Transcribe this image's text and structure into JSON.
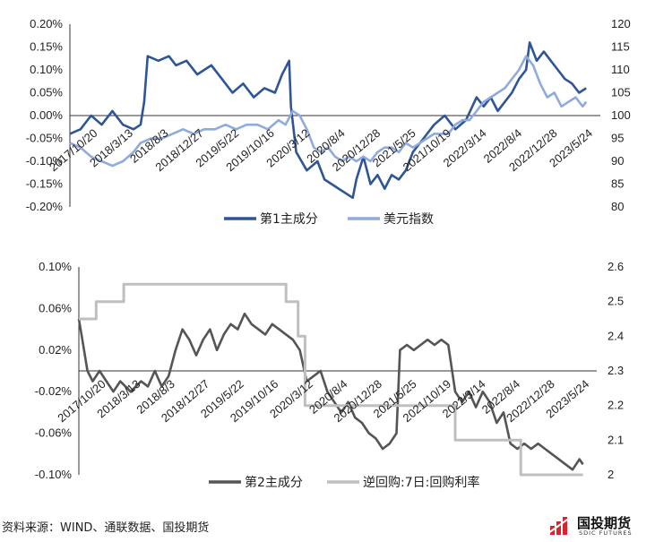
{
  "footer": {
    "source": "资料来源：WIND、通联数据、国投期货"
  },
  "logo": {
    "name": "国投期货",
    "sub": "SDIC FUTURES"
  },
  "chart_data": [
    {
      "type": "line",
      "x_ticks": [
        "2017/10/20",
        "2018/3/13",
        "2018/8/3",
        "2018/12/27",
        "2019/5/22",
        "2019/10/16",
        "2020/3/12",
        "2020/8/4",
        "2020/12/28",
        "2021/5/25",
        "2021/10/19",
        "2022/3/14",
        "2022/8/4",
        "2022/12/28",
        "2023/5/24"
      ],
      "y_left": {
        "min": -0.2,
        "max": 0.2,
        "ticks": [
          "-0.20%",
          "-0.15%",
          "-0.10%",
          "-0.05%",
          "0.00%",
          "0.05%",
          "0.10%",
          "0.15%",
          "0.20%"
        ]
      },
      "y_right": {
        "min": 80,
        "max": 120,
        "ticks": [
          "80",
          "85",
          "90",
          "95",
          "100",
          "105",
          "110",
          "115",
          "120"
        ]
      },
      "grid": false,
      "legend_position": "bottom",
      "series": [
        {
          "name": "第1主成分",
          "axis": "left",
          "color": "#2f5597",
          "points": [
            [
              0,
              -0.04
            ],
            [
              0.3,
              -0.03
            ],
            [
              0.6,
              0.0
            ],
            [
              0.9,
              -0.02
            ],
            [
              1.2,
              0.01
            ],
            [
              1.5,
              -0.02
            ],
            [
              1.8,
              -0.03
            ],
            [
              2.0,
              -0.02
            ],
            [
              2.1,
              0.03
            ],
            [
              2.2,
              0.13
            ],
            [
              2.5,
              0.12
            ],
            [
              2.8,
              0.13
            ],
            [
              3.0,
              0.11
            ],
            [
              3.3,
              0.12
            ],
            [
              3.6,
              0.09
            ],
            [
              3.8,
              0.1
            ],
            [
              4.0,
              0.11
            ],
            [
              4.3,
              0.08
            ],
            [
              4.6,
              0.05
            ],
            [
              4.9,
              0.07
            ],
            [
              5.2,
              0.04
            ],
            [
              5.5,
              0.06
            ],
            [
              5.8,
              0.05
            ],
            [
              6.0,
              0.09
            ],
            [
              6.2,
              0.12
            ],
            [
              6.25,
              0.02
            ],
            [
              6.4,
              -0.08
            ],
            [
              6.7,
              -0.12
            ],
            [
              7.0,
              -0.1
            ],
            [
              7.2,
              -0.14
            ],
            [
              7.4,
              -0.15
            ],
            [
              7.6,
              -0.16
            ],
            [
              7.8,
              -0.17
            ],
            [
              8.0,
              -0.18
            ],
            [
              8.1,
              -0.14
            ],
            [
              8.3,
              -0.09
            ],
            [
              8.5,
              -0.15
            ],
            [
              8.7,
              -0.13
            ],
            [
              8.9,
              -0.16
            ],
            [
              9.1,
              -0.13
            ],
            [
              9.3,
              -0.14
            ],
            [
              9.5,
              -0.12
            ],
            [
              9.7,
              -0.08
            ],
            [
              10.0,
              -0.05
            ],
            [
              10.3,
              -0.02
            ],
            [
              10.6,
              0.0
            ],
            [
              10.9,
              -0.03
            ],
            [
              11.2,
              -0.01
            ],
            [
              11.5,
              0.04
            ],
            [
              11.7,
              0.02
            ],
            [
              11.9,
              0.04
            ],
            [
              12.1,
              0.01
            ],
            [
              12.3,
              0.03
            ],
            [
              12.5,
              0.05
            ],
            [
              12.7,
              0.08
            ],
            [
              12.9,
              0.1
            ],
            [
              13.0,
              0.16
            ],
            [
              13.2,
              0.12
            ],
            [
              13.4,
              0.14
            ],
            [
              13.6,
              0.12
            ],
            [
              13.8,
              0.1
            ],
            [
              14.0,
              0.08
            ],
            [
              14.2,
              0.07
            ],
            [
              14.4,
              0.05
            ],
            [
              14.6,
              0.06
            ]
          ]
        },
        {
          "name": "美元指数",
          "axis": "right",
          "color": "#8faadc",
          "points": [
            [
              0,
              94
            ],
            [
              0.3,
              93
            ],
            [
              0.6,
              91
            ],
            [
              0.9,
              90
            ],
            [
              1.2,
              89
            ],
            [
              1.5,
              90
            ],
            [
              1.8,
              92
            ],
            [
              2.0,
              94
            ],
            [
              2.3,
              95
            ],
            [
              2.6,
              95
            ],
            [
              2.9,
              96
            ],
            [
              3.2,
              97
            ],
            [
              3.5,
              96
            ],
            [
              3.8,
              97
            ],
            [
              4.1,
              97
            ],
            [
              4.4,
              98
            ],
            [
              4.7,
              97
            ],
            [
              5.0,
              98
            ],
            [
              5.3,
              98
            ],
            [
              5.6,
              97
            ],
            [
              5.9,
              99
            ],
            [
              6.1,
              98
            ],
            [
              6.3,
              101
            ],
            [
              6.5,
              100
            ],
            [
              6.7,
              97
            ],
            [
              6.9,
              93
            ],
            [
              7.1,
              92
            ],
            [
              7.3,
              93
            ],
            [
              7.5,
              91
            ],
            [
              7.7,
              90
            ],
            [
              7.9,
              91
            ],
            [
              8.1,
              90
            ],
            [
              8.3,
              91
            ],
            [
              8.5,
              90
            ],
            [
              8.7,
              92
            ],
            [
              8.9,
              93
            ],
            [
              9.1,
              93
            ],
            [
              9.3,
              92
            ],
            [
              9.5,
              94
            ],
            [
              9.7,
              93
            ],
            [
              9.9,
              94
            ],
            [
              10.1,
              95
            ],
            [
              10.3,
              96
            ],
            [
              10.5,
              96
            ],
            [
              10.7,
              96
            ],
            [
              10.9,
              98
            ],
            [
              11.1,
              99
            ],
            [
              11.3,
              99
            ],
            [
              11.5,
              101
            ],
            [
              11.7,
              103
            ],
            [
              11.9,
              104
            ],
            [
              12.1,
              105
            ],
            [
              12.3,
              106
            ],
            [
              12.5,
              108
            ],
            [
              12.7,
              110
            ],
            [
              12.9,
              113
            ],
            [
              13.1,
              111
            ],
            [
              13.3,
              107
            ],
            [
              13.5,
              104
            ],
            [
              13.7,
              105
            ],
            [
              13.9,
              102
            ],
            [
              14.1,
              103
            ],
            [
              14.3,
              104
            ],
            [
              14.5,
              102
            ],
            [
              14.6,
              103
            ]
          ]
        }
      ]
    },
    {
      "type": "line",
      "x_ticks": [
        "2017/10/20",
        "2018/3/13",
        "2018/8/3",
        "2018/12/27",
        "2019/5/22",
        "2019/10/16",
        "2020/3/12",
        "2020/8/4",
        "2020/12/28",
        "2021/5/25",
        "2021/10/19",
        "2022/3/14",
        "2022/8/4",
        "2022/12/28",
        "2023/5/24"
      ],
      "y_left": {
        "min": -0.1,
        "max": 0.1,
        "ticks": [
          "-0.10%",
          "-0.06%",
          "-0.02%",
          "0.02%",
          "0.06%",
          "0.10%"
        ]
      },
      "y_right": {
        "min": 2.0,
        "max": 2.6,
        "ticks": [
          "2",
          "2.1",
          "2.2",
          "2.3",
          "2.4",
          "2.5",
          "2.6"
        ]
      },
      "grid": false,
      "legend_position": "bottom",
      "series": [
        {
          "name": "第2主成分",
          "axis": "left",
          "color": "#555555",
          "points": [
            [
              0,
              0.05
            ],
            [
              0.1,
              0.03
            ],
            [
              0.25,
              0.0
            ],
            [
              0.4,
              -0.01
            ],
            [
              0.6,
              0.0
            ],
            [
              0.8,
              -0.01
            ],
            [
              1.0,
              -0.02
            ],
            [
              1.2,
              -0.01
            ],
            [
              1.5,
              -0.02
            ],
            [
              1.8,
              -0.01
            ],
            [
              2.0,
              -0.015
            ],
            [
              2.2,
              0.0
            ],
            [
              2.4,
              -0.015
            ],
            [
              2.6,
              -0.005
            ],
            [
              2.8,
              0.02
            ],
            [
              3.0,
              0.04
            ],
            [
              3.2,
              0.03
            ],
            [
              3.4,
              0.015
            ],
            [
              3.6,
              0.03
            ],
            [
              3.8,
              0.04
            ],
            [
              4.0,
              0.02
            ],
            [
              4.2,
              0.035
            ],
            [
              4.4,
              0.045
            ],
            [
              4.6,
              0.04
            ],
            [
              4.8,
              0.055
            ],
            [
              5.0,
              0.045
            ],
            [
              5.2,
              0.04
            ],
            [
              5.4,
              0.035
            ],
            [
              5.6,
              0.045
            ],
            [
              5.8,
              0.04
            ],
            [
              6.0,
              0.035
            ],
            [
              6.2,
              0.03
            ],
            [
              6.4,
              0.02
            ],
            [
              6.6,
              -0.01
            ],
            [
              6.8,
              -0.005
            ],
            [
              7.0,
              0.0
            ],
            [
              7.2,
              -0.02
            ],
            [
              7.4,
              -0.03
            ],
            [
              7.6,
              -0.04
            ],
            [
              7.8,
              -0.03
            ],
            [
              8.0,
              -0.045
            ],
            [
              8.2,
              -0.05
            ],
            [
              8.4,
              -0.06
            ],
            [
              8.6,
              -0.065
            ],
            [
              8.8,
              -0.075
            ],
            [
              9.0,
              -0.07
            ],
            [
              9.2,
              -0.06
            ],
            [
              9.3,
              0.02
            ],
            [
              9.5,
              0.025
            ],
            [
              9.7,
              0.02
            ],
            [
              9.9,
              0.025
            ],
            [
              10.1,
              0.03
            ],
            [
              10.3,
              0.025
            ],
            [
              10.5,
              0.03
            ],
            [
              10.7,
              0.025
            ],
            [
              10.9,
              -0.02
            ],
            [
              11.1,
              -0.03
            ],
            [
              11.3,
              -0.02
            ],
            [
              11.5,
              -0.035
            ],
            [
              11.7,
              -0.02
            ],
            [
              11.9,
              -0.03
            ],
            [
              12.1,
              -0.05
            ],
            [
              12.3,
              -0.04
            ],
            [
              12.5,
              -0.07
            ],
            [
              12.7,
              -0.075
            ],
            [
              12.9,
              -0.07
            ],
            [
              13.1,
              -0.075
            ],
            [
              13.3,
              -0.07
            ],
            [
              13.5,
              -0.075
            ],
            [
              13.7,
              -0.08
            ],
            [
              13.9,
              -0.085
            ],
            [
              14.1,
              -0.09
            ],
            [
              14.3,
              -0.095
            ],
            [
              14.5,
              -0.085
            ],
            [
              14.6,
              -0.09
            ]
          ]
        },
        {
          "name": "逆回购:7日:回购利率",
          "axis": "right",
          "color": "#bfbfbf",
          "step": true,
          "points": [
            [
              0,
              2.45
            ],
            [
              0.5,
              2.45
            ],
            [
              0.5,
              2.5
            ],
            [
              1.3,
              2.5
            ],
            [
              1.3,
              2.55
            ],
            [
              6.0,
              2.55
            ],
            [
              6.0,
              2.5
            ],
            [
              6.35,
              2.5
            ],
            [
              6.35,
              2.4
            ],
            [
              6.55,
              2.4
            ],
            [
              6.55,
              2.2
            ],
            [
              10.9,
              2.2
            ],
            [
              10.9,
              2.1
            ],
            [
              12.8,
              2.1
            ],
            [
              12.8,
              2.0
            ],
            [
              14.6,
              2.0
            ]
          ]
        }
      ]
    }
  ]
}
